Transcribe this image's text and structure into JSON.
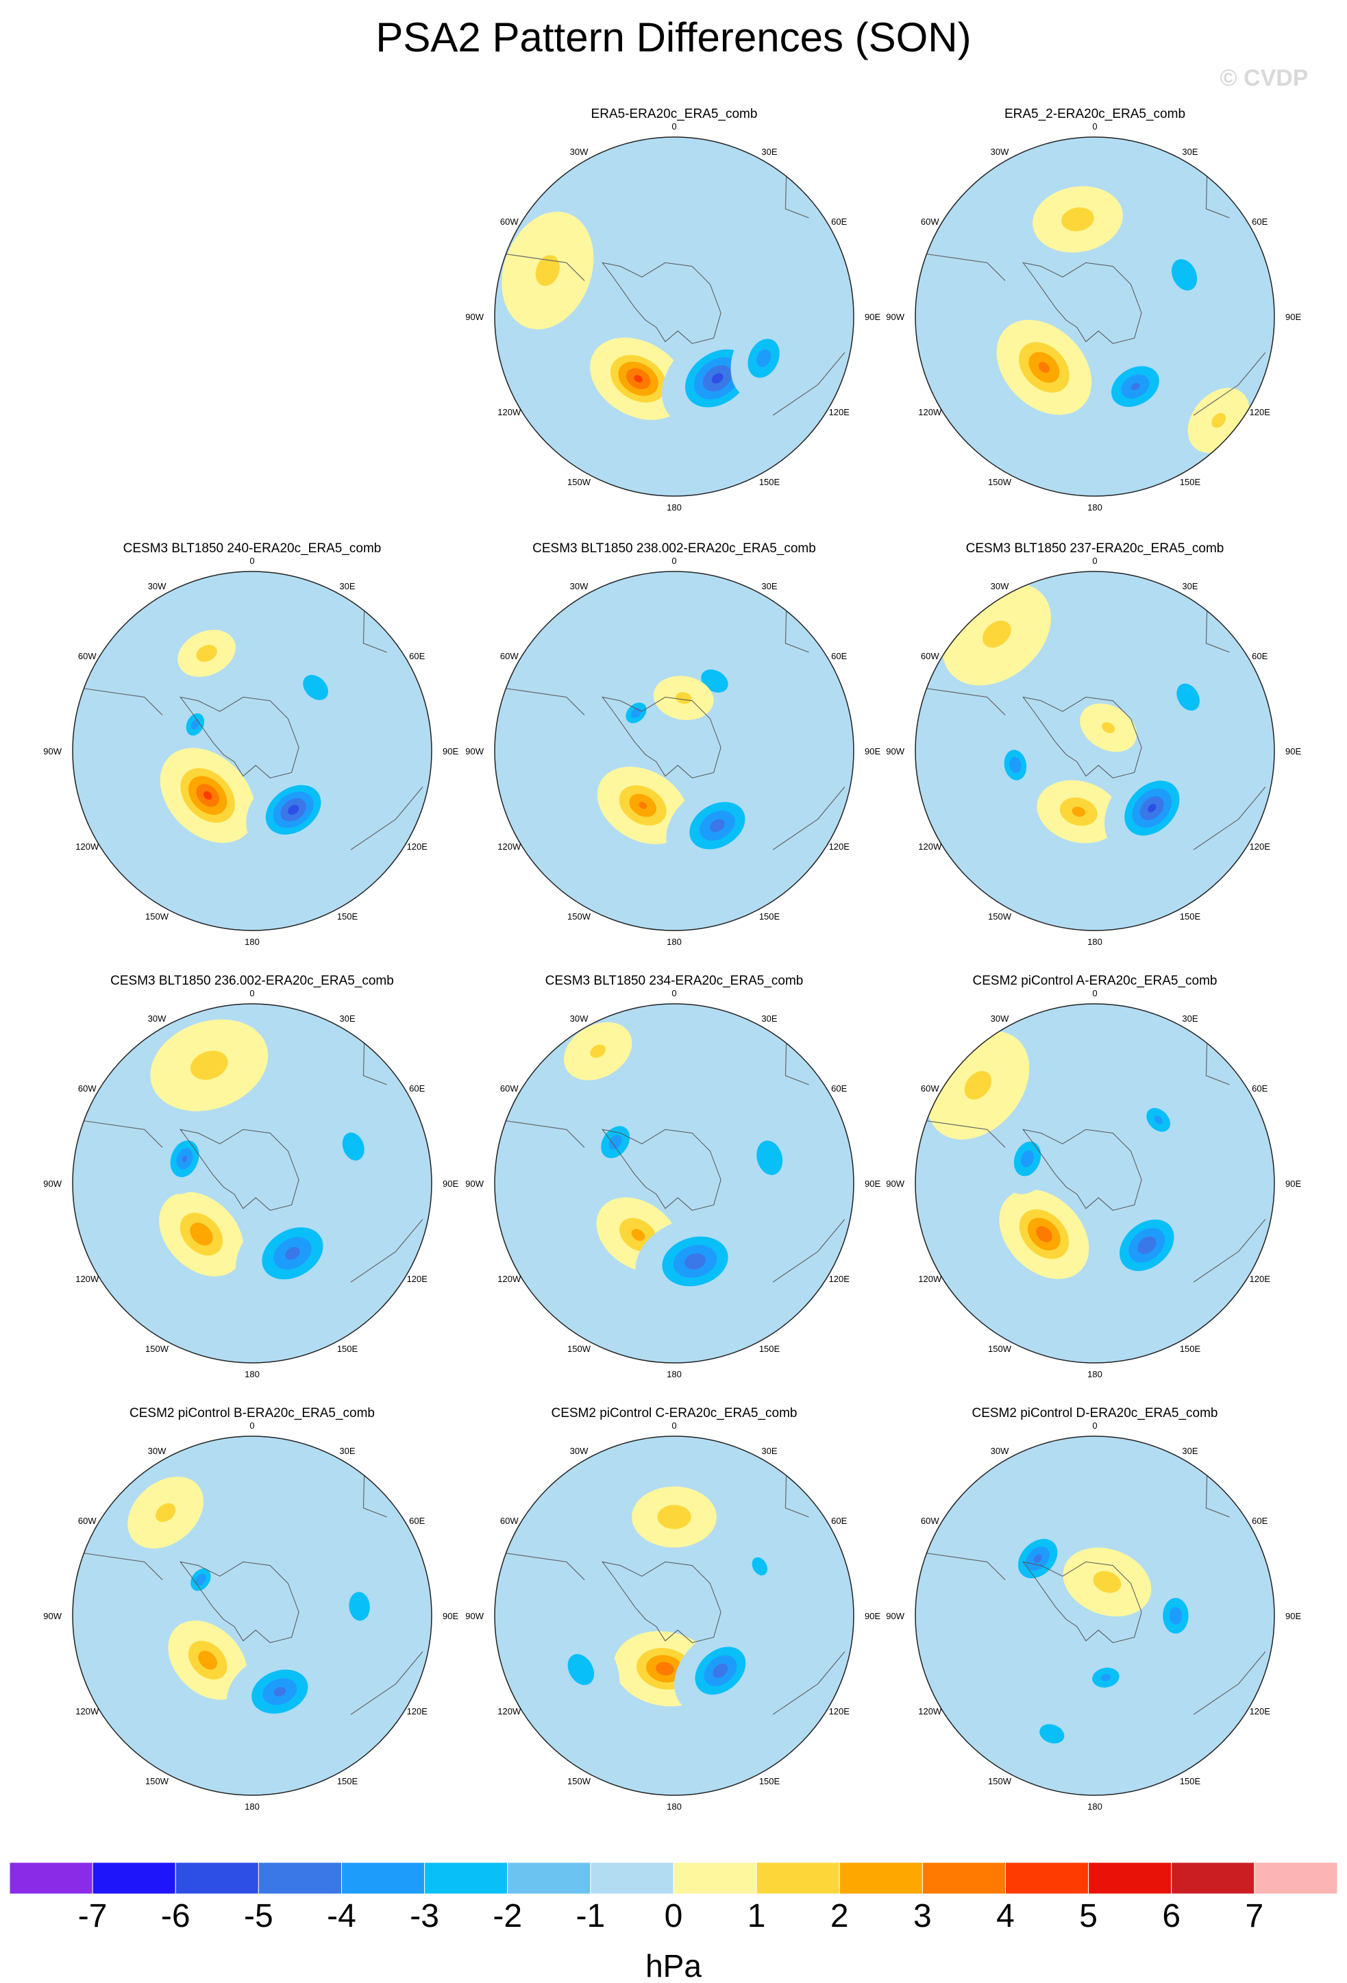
{
  "chart_data": {
    "type": "heatmap",
    "title": "PSA2 Pattern Differences (SON)",
    "watermark": "© CVDP",
    "projection": "south polar stereographic",
    "units": "hPa",
    "contour_levels": [
      -7,
      -6,
      -5,
      -4,
      -3,
      -2,
      -1,
      0,
      1,
      2,
      3,
      4,
      5,
      6,
      7
    ],
    "colorbar_ticks": [
      "-7",
      "-6",
      "-5",
      "-4",
      "-3",
      "-2",
      "-1",
      "0",
      "1",
      "2",
      "3",
      "4",
      "5",
      "6",
      "7"
    ],
    "colorbar_colors": [
      "#8a2be8",
      "#1e15fb",
      "#2d4fe6",
      "#3a78e8",
      "#1e9cfc",
      "#09bff8",
      "#6ac3f0",
      "#b2dcf2",
      "#fef79e",
      "#fdd73a",
      "#fda700",
      "#fe7a00",
      "#fe3b00",
      "#e81208",
      "#cb1e22",
      "#fdb4b4"
    ],
    "longitude_labels": {
      "top": "0",
      "bottom": "180",
      "upper_left": "30W",
      "upper_right": "30E",
      "left_upper": "60W",
      "right_upper": "60E",
      "left": "90W",
      "right": "90E",
      "left_lower": "120W",
      "right_lower": "120E",
      "lower_left": "150W",
      "lower_right": "150E"
    },
    "panels": [
      {
        "title": "ERA5-ERA20c_ERA5_comb",
        "anomalies": [
          {
            "lon": -150,
            "r": 0.4,
            "value": 4.2,
            "size": 0.17
          },
          {
            "lon": 145,
            "r": 0.42,
            "value": -4.3,
            "size": 0.2
          },
          {
            "lon": 115,
            "r": 0.55,
            "value": -2.5,
            "size": 0.14
          },
          {
            "lon": -70,
            "r": 0.75,
            "value": 1.2,
            "size": 0.2
          }
        ]
      },
      {
        "title": "ERA5_2-ERA20c_ERA5_comb",
        "anomalies": [
          {
            "lon": -135,
            "r": 0.4,
            "value": 3.2,
            "size": 0.18
          },
          {
            "lon": 150,
            "r": 0.45,
            "value": -3.1,
            "size": 0.16
          },
          {
            "lon": -10,
            "r": 0.55,
            "value": 1.6,
            "size": 0.15
          },
          {
            "lon": 65,
            "r": 0.55,
            "value": -1.6,
            "size": 0.15
          },
          {
            "lon": 130,
            "r": 0.9,
            "value": 1.1,
            "size": 0.12
          }
        ]
      },
      {
        "title": "CESM3 BLT1850 240-ERA20c_ERA5_comb",
        "anomalies": [
          {
            "lon": -135,
            "r": 0.35,
            "value": 4.1,
            "size": 0.18
          },
          {
            "lon": 145,
            "r": 0.4,
            "value": -4.4,
            "size": 0.17
          },
          {
            "lon": -65,
            "r": 0.35,
            "value": -2.5,
            "size": 0.08
          },
          {
            "lon": -25,
            "r": 0.6,
            "value": 1.6,
            "size": 0.1
          },
          {
            "lon": 45,
            "r": 0.5,
            "value": -1.5,
            "size": 0.14
          }
        ]
      },
      {
        "title": "CESM3 BLT1850 238.002-ERA20c_ERA5_comb",
        "anomalies": [
          {
            "lon": -150,
            "r": 0.35,
            "value": 3.0,
            "size": 0.16
          },
          {
            "lon": 150,
            "r": 0.48,
            "value": -3.4,
            "size": 0.18
          },
          {
            "lon": -45,
            "r": 0.3,
            "value": -2.6,
            "size": 0.08
          },
          {
            "lon": 30,
            "r": 0.45,
            "value": -1.5,
            "size": 0.14
          },
          {
            "lon": 10,
            "r": 0.3,
            "value": 1.2,
            "size": 0.1
          }
        ]
      },
      {
        "title": "CESM3 BLT1850 237-ERA20c_ERA5_comb",
        "anomalies": [
          {
            "lon": -165,
            "r": 0.35,
            "value": 2.2,
            "size": 0.14
          },
          {
            "lon": 135,
            "r": 0.45,
            "value": -4.2,
            "size": 0.18
          },
          {
            "lon": -100,
            "r": 0.45,
            "value": -2.8,
            "size": 0.1
          },
          {
            "lon": 60,
            "r": 0.6,
            "value": -1.5,
            "size": 0.14
          },
          {
            "lon": 30,
            "r": 0.15,
            "value": 1.1,
            "size": 0.1
          },
          {
            "lon": -40,
            "r": 0.85,
            "value": 1.2,
            "size": 0.2
          }
        ]
      },
      {
        "title": "CESM3 BLT1850 236.002-ERA20c_ERA5_comb",
        "anomalies": [
          {
            "lon": -135,
            "r": 0.4,
            "value": 2.8,
            "size": 0.16
          },
          {
            "lon": 150,
            "r": 0.45,
            "value": -3.3,
            "size": 0.2
          },
          {
            "lon": -70,
            "r": 0.4,
            "value": -3.0,
            "size": 0.12
          },
          {
            "lon": -20,
            "r": 0.7,
            "value": 1.4,
            "size": 0.2
          },
          {
            "lon": 70,
            "r": 0.6,
            "value": -1.5,
            "size": 0.14
          }
        ]
      },
      {
        "title": "CESM3 BLT1850 234-ERA20c_ERA5_comb",
        "anomalies": [
          {
            "lon": -145,
            "r": 0.35,
            "value": 2.2,
            "size": 0.15
          },
          {
            "lon": 165,
            "r": 0.45,
            "value": -3.6,
            "size": 0.2
          },
          {
            "lon": -55,
            "r": 0.4,
            "value": -2.5,
            "size": 0.12
          },
          {
            "lon": 75,
            "r": 0.55,
            "value": -1.6,
            "size": 0.16
          },
          {
            "lon": -30,
            "r": 0.85,
            "value": 1.1,
            "size": 0.12
          }
        ]
      },
      {
        "title": "CESM2 piControl A-ERA20c_ERA5_comb",
        "anomalies": [
          {
            "lon": -135,
            "r": 0.4,
            "value": 3.6,
            "size": 0.17
          },
          {
            "lon": 140,
            "r": 0.45,
            "value": -3.7,
            "size": 0.18
          },
          {
            "lon": -70,
            "r": 0.4,
            "value": -2.6,
            "size": 0.12
          },
          {
            "lon": 45,
            "r": 0.5,
            "value": -2.2,
            "size": 0.1
          },
          {
            "lon": -50,
            "r": 0.85,
            "value": 1.2,
            "size": 0.2
          }
        ]
      },
      {
        "title": "CESM2 piControl B-ERA20c_ERA5_comb",
        "anomalies": [
          {
            "lon": -135,
            "r": 0.35,
            "value": 2.6,
            "size": 0.15
          },
          {
            "lon": 160,
            "r": 0.45,
            "value": -3.2,
            "size": 0.18
          },
          {
            "lon": -55,
            "r": 0.35,
            "value": -2.8,
            "size": 0.08
          },
          {
            "lon": 85,
            "r": 0.6,
            "value": -1.5,
            "size": 0.14
          },
          {
            "lon": -40,
            "r": 0.75,
            "value": 1.2,
            "size": 0.14
          }
        ]
      },
      {
        "title": "CESM2 piControl C-ERA20c_ERA5_comb",
        "anomalies": [
          {
            "lon": -170,
            "r": 0.3,
            "value": 3.6,
            "size": 0.17
          },
          {
            "lon": 140,
            "r": 0.4,
            "value": -3.5,
            "size": 0.17
          },
          {
            "lon": 0,
            "r": 0.55,
            "value": 1.8,
            "size": 0.14
          },
          {
            "lon": 60,
            "r": 0.55,
            "value": -1.4,
            "size": 0.1
          },
          {
            "lon": -120,
            "r": 0.6,
            "value": -1.5,
            "size": 0.16
          }
        ]
      },
      {
        "title": "CESM2 piControl D-ERA20c_ERA5_comb",
        "anomalies": [
          {
            "lon": -45,
            "r": 0.45,
            "value": -3.2,
            "size": 0.14
          },
          {
            "lon": 90,
            "r": 0.45,
            "value": -2.6,
            "size": 0.12
          },
          {
            "lon": 170,
            "r": 0.35,
            "value": -2.2,
            "size": 0.1
          },
          {
            "lon": 20,
            "r": 0.2,
            "value": 1.4,
            "size": 0.15
          },
          {
            "lon": -160,
            "r": 0.7,
            "value": -1.2,
            "size": 0.16
          }
        ]
      }
    ]
  }
}
